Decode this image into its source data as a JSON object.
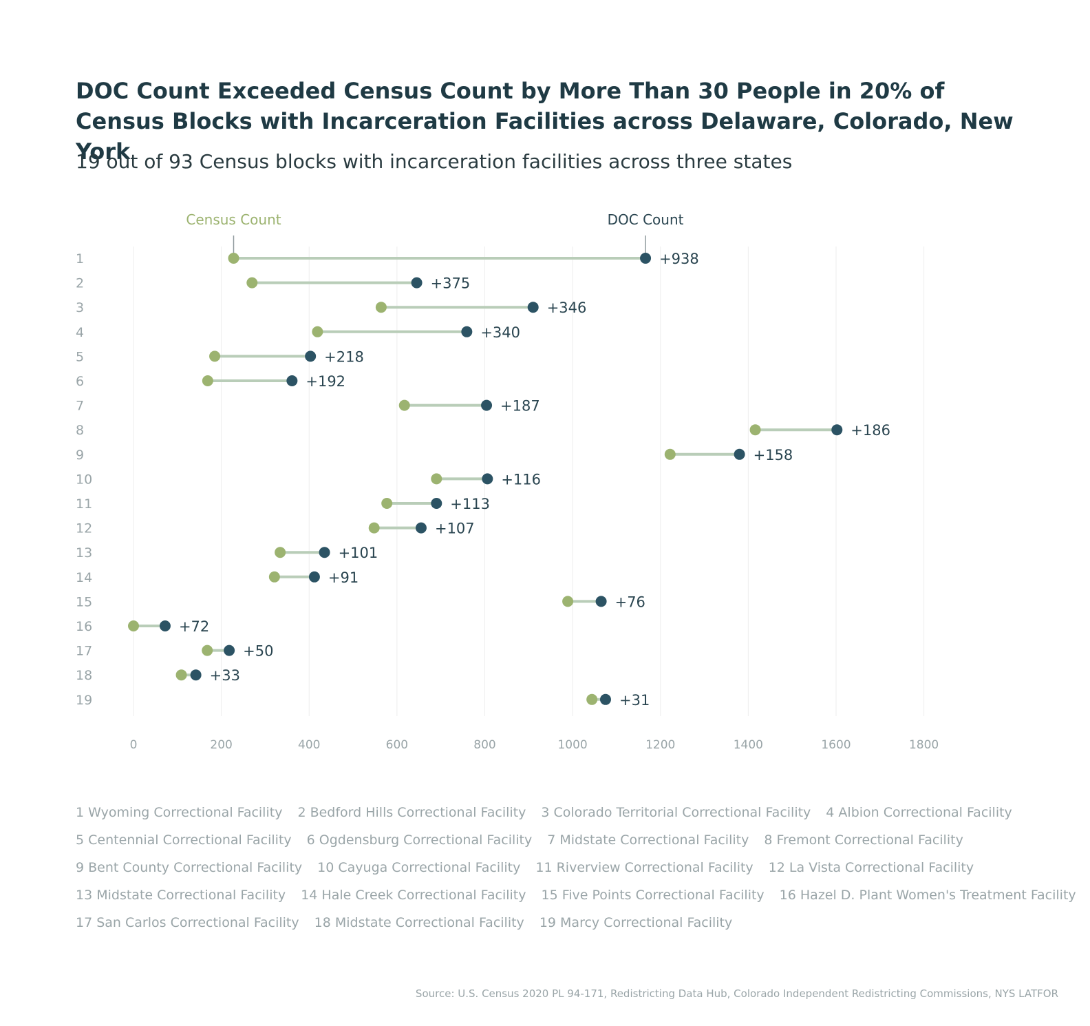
{
  "title": "DOC Count Exceeded Census Count by More Than 30 People in 20% of Census Blocks with Incarceration Facilities across Delaware, Colorado, New York",
  "subtitle": "19 out of 93 Census blocks with incarceration facilities across three states",
  "source": "Source: U.S. Census 2020 PL 94-171, Redistricting Data Hub, Colorado Independent Redistricting Commissions, NYS LATFOR",
  "colors": {
    "census": "#9cb370",
    "doc": "#2c5364",
    "connector": "#b9cdb8",
    "grid": "#eeeeee",
    "muted": "#8f9a9d"
  },
  "chart_data": {
    "type": "dumbbell",
    "series_labels": {
      "census": "Census Count",
      "doc": "DOC Count"
    },
    "x_ticks": [
      0,
      200,
      400,
      600,
      800,
      1000,
      1200,
      1400,
      1600,
      1800
    ],
    "xlim": [
      0,
      1800
    ],
    "rows": [
      {
        "id": "1",
        "census": 228,
        "doc": 1166,
        "label": "+938"
      },
      {
        "id": "2",
        "census": 270,
        "doc": 645,
        "label": "+375"
      },
      {
        "id": "3",
        "census": 564,
        "doc": 910,
        "label": "+346"
      },
      {
        "id": "4",
        "census": 419,
        "doc": 759,
        "label": "+340"
      },
      {
        "id": "5",
        "census": 185,
        "doc": 403,
        "label": "+218"
      },
      {
        "id": "6",
        "census": 169,
        "doc": 361,
        "label": "+192"
      },
      {
        "id": "7",
        "census": 617,
        "doc": 804,
        "label": "+187"
      },
      {
        "id": "8",
        "census": 1416,
        "doc": 1602,
        "label": "+186"
      },
      {
        "id": "9",
        "census": 1222,
        "doc": 1380,
        "label": "+158"
      },
      {
        "id": "10",
        "census": 690,
        "doc": 806,
        "label": "+116"
      },
      {
        "id": "11",
        "census": 577,
        "doc": 690,
        "label": "+113"
      },
      {
        "id": "12",
        "census": 548,
        "doc": 655,
        "label": "+107"
      },
      {
        "id": "13",
        "census": 334,
        "doc": 435,
        "label": "+101"
      },
      {
        "id": "14",
        "census": 321,
        "doc": 412,
        "label": "+91"
      },
      {
        "id": "15",
        "census": 989,
        "doc": 1065,
        "label": "+76"
      },
      {
        "id": "16",
        "census": 0,
        "doc": 72,
        "label": "+72"
      },
      {
        "id": "17",
        "census": 168,
        "doc": 218,
        "label": "+50"
      },
      {
        "id": "18",
        "census": 109,
        "doc": 142,
        "label": "+33"
      },
      {
        "id": "19",
        "census": 1044,
        "doc": 1075,
        "label": "+31"
      }
    ]
  },
  "legend_rows": [
    [
      "1 Wyoming Correctional Facility",
      "2 Bedford Hills Correctional Facility",
      "3 Colorado Territorial Correctional Facility",
      "4 Albion Correctional Facility"
    ],
    [
      "5 Centennial Correctional Facility",
      "6 Ogdensburg Correctional Facility",
      "7 Midstate Correctional Facility",
      "8 Fremont Correctional Facility"
    ],
    [
      "9 Bent County Correctional Facility",
      "10 Cayuga Correctional Facility",
      "11 Riverview Correctional Facility",
      "12 La Vista Correctional Facility"
    ],
    [
      "13 Midstate Correctional Facility",
      "14 Hale Creek Correctional Facility",
      "15 Five Points Correctional Facility",
      "16 Hazel D. Plant Women's Treatment Facility"
    ],
    [
      "17 San Carlos Correctional Facility",
      "18 Midstate Correctional Facility",
      "19 Marcy Correctional Facility"
    ]
  ]
}
